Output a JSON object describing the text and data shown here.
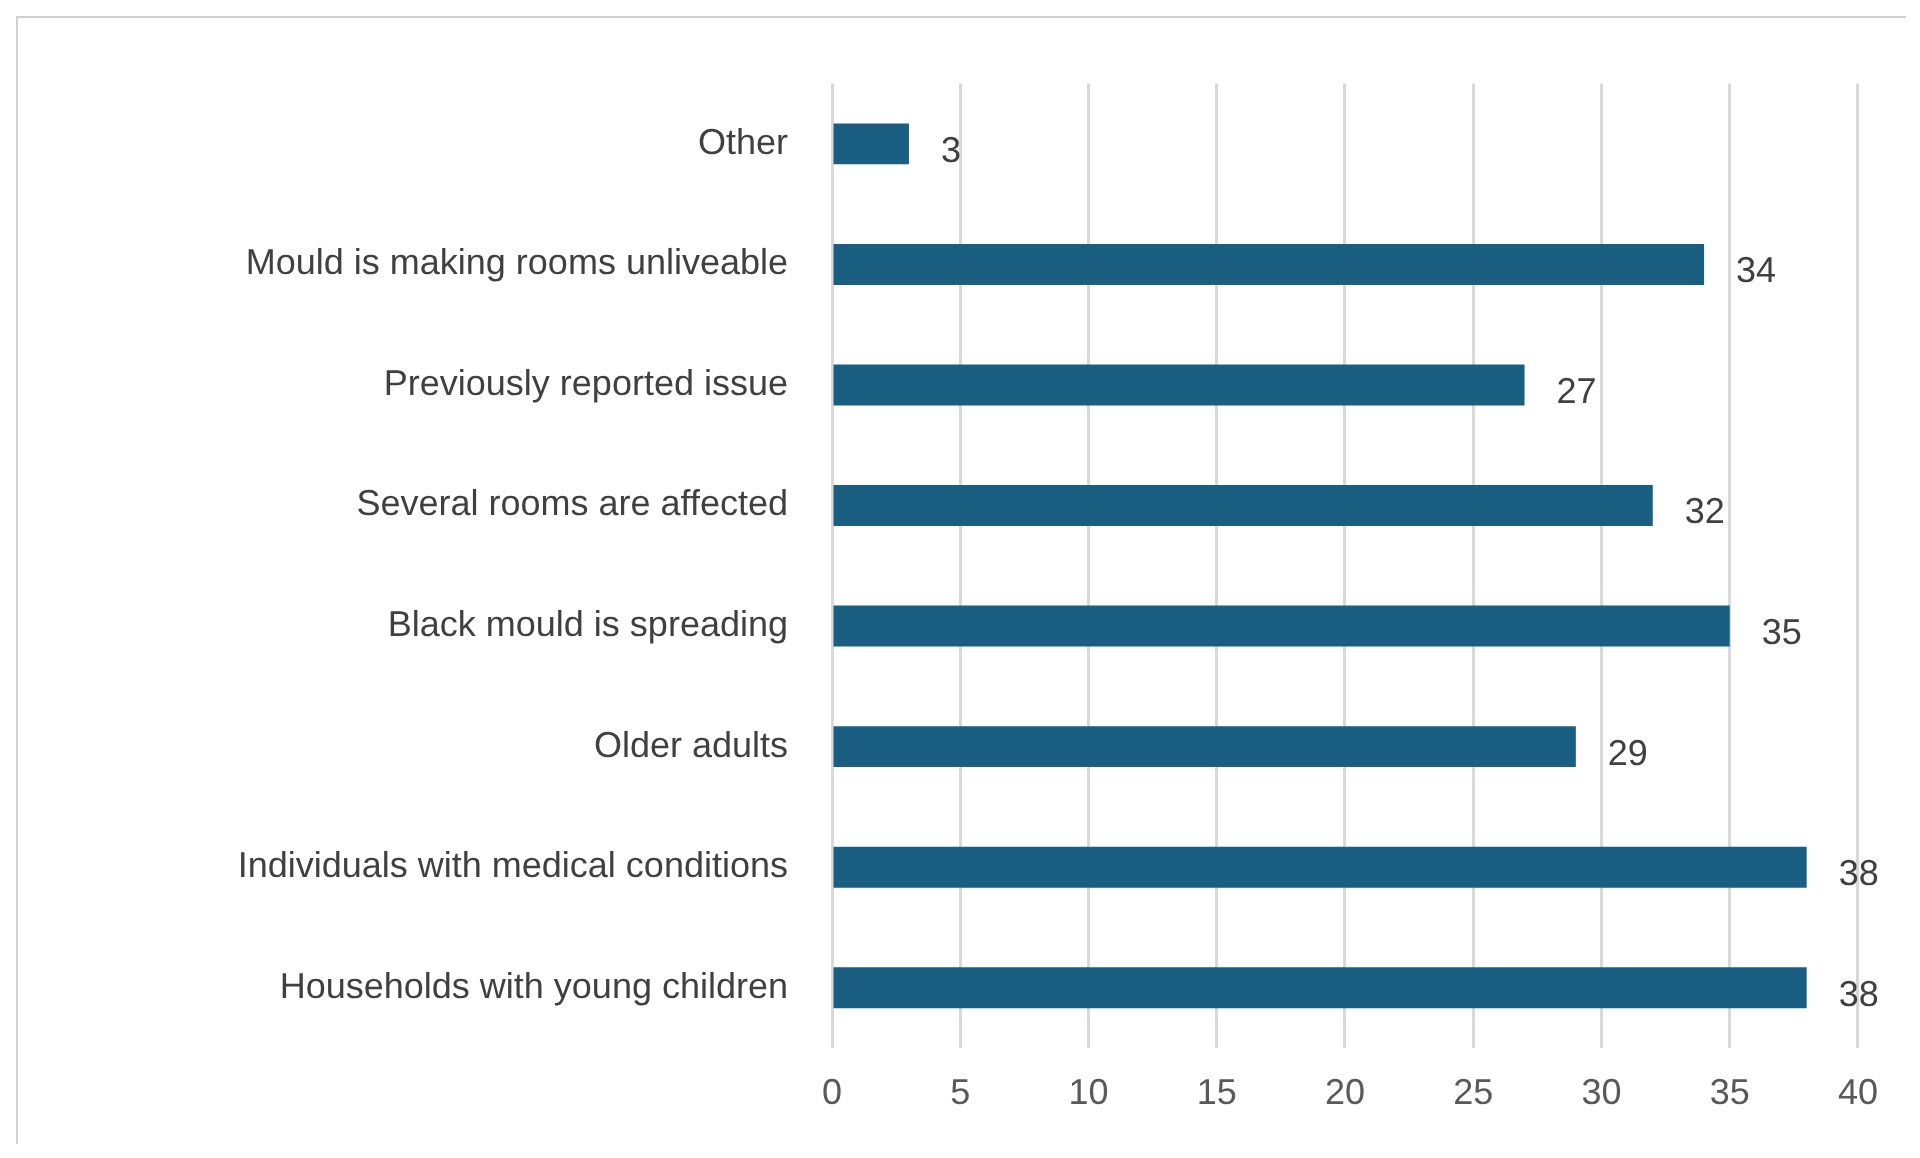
{
  "chart_data": {
    "type": "bar",
    "orientation": "horizontal",
    "categories": [
      "Other",
      "Mould is making rooms unliveable",
      "Previously reported issue",
      "Several rooms are affected",
      "Black mould is spreading",
      "Older adults",
      "Individuals with medical conditions",
      "Households with young children"
    ],
    "values": [
      3,
      34,
      27,
      32,
      35,
      29,
      38,
      38
    ],
    "color": "#1a5f82",
    "xlim": [
      0,
      40
    ],
    "xticks": [
      0,
      5,
      10,
      15,
      20,
      25,
      30,
      35,
      40
    ],
    "grid": "x",
    "legend": false,
    "data_labels": true
  }
}
